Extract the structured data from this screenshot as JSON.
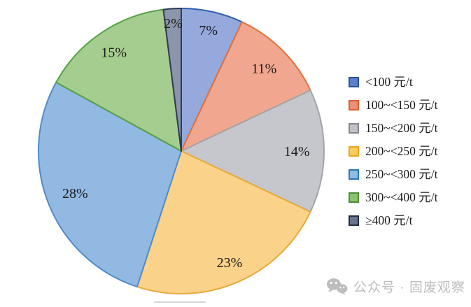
{
  "chart_data": {
    "type": "pie",
    "title": "",
    "legend_position": "right",
    "start_angle_deg": 0,
    "direction": "clockwise",
    "value_suffix": "%",
    "categories": [
      "<100 元/t",
      "100~<150 元/t",
      "150~<200 元/t",
      "200~<250 元/t",
      "250~<300 元/t",
      "300~<400 元/t",
      "≥400 元/t"
    ],
    "values": [
      7,
      11,
      14,
      23,
      28,
      15,
      2
    ],
    "slices": [
      {
        "label": "<100 元/t",
        "value": 7,
        "fill": "#95A9DC",
        "stroke": "#2E5EAE",
        "legend_fill": "#5A81CB",
        "legend_stroke": "#2D5296"
      },
      {
        "label": "100~<150 元/t",
        "value": 11,
        "fill": "#F1A78F",
        "stroke": "#E4703B",
        "legend_fill": "#EE9173",
        "legend_stroke": "#D85F31"
      },
      {
        "label": "150~<200 元/t",
        "value": 14,
        "fill": "#C5C7CC",
        "stroke": "#A2A5AA",
        "legend_fill": "#C0C2C7",
        "legend_stroke": "#84878C"
      },
      {
        "label": "200~<250 元/t",
        "value": 23,
        "fill": "#FAD28A",
        "stroke": "#E9A93C",
        "legend_fill": "#FBCA5B",
        "legend_stroke": "#E8A826"
      },
      {
        "label": "250~<300 元/t",
        "value": 28,
        "fill": "#92B9E2",
        "stroke": "#4F8CC9",
        "legend_fill": "#8FBCE5",
        "legend_stroke": "#2F76B6"
      },
      {
        "label": "300~<400 元/t",
        "value": 15,
        "fill": "#A6CD90",
        "stroke": "#54A246",
        "legend_fill": "#8AC46E",
        "legend_stroke": "#4C8B3B"
      },
      {
        "label": "≥400 元/t",
        "value": 2,
        "fill": "#8B95AC",
        "stroke": "#2F3A55",
        "legend_fill": "#68758F",
        "legend_stroke": "#262E40"
      }
    ]
  },
  "watermark": {
    "text": "公众号 · 固废观察",
    "icon": "wechat-icon",
    "color": "#bdbdbd"
  }
}
